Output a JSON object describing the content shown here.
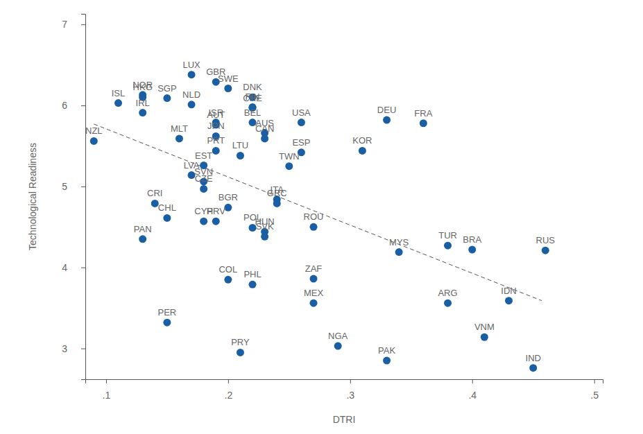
{
  "chart_data": {
    "type": "scatter",
    "x_label": "DTRI",
    "y_label": "Technological Readiness",
    "color": "#1a5fa3",
    "marker": "circle",
    "xlim": [
      0.083,
      0.507
    ],
    "ylim": [
      2.62,
      7.13
    ],
    "xticks": [
      {
        "value": 0.1,
        "label": ".1"
      },
      {
        "value": 0.2,
        "label": ".2"
      },
      {
        "value": 0.3,
        "label": ".3"
      },
      {
        "value": 0.4,
        "label": ".4"
      },
      {
        "value": 0.5,
        "label": ".5"
      }
    ],
    "yticks": [
      3,
      4,
      5,
      6,
      7
    ],
    "grid": false,
    "labels": [
      "NZL",
      "ISL",
      "NOR",
      "HKG",
      "IRL",
      "SGP",
      "LUX",
      "NLD",
      "GBR",
      "SWE",
      "DNK",
      "FIN",
      "CHE",
      "ISR",
      "AUT",
      "JPN",
      "PRT",
      "BEL",
      "AUS",
      "CAN",
      "USA",
      "DEU",
      "FRA",
      "KOR",
      "ESP",
      "TWN",
      "LTU",
      "MLT",
      "EST",
      "LVA",
      "SVN",
      "CZE",
      "CRI",
      "CHL",
      "BGR",
      "ITA",
      "GRC",
      "CYP",
      "HRV",
      "POL",
      "HUN",
      "SVK",
      "ROU",
      "PAN",
      "MYS",
      "TUR",
      "BRA",
      "RUS",
      "COL",
      "PHL",
      "ZAF",
      "MEX",
      "ARG",
      "IDN",
      "PER",
      "PRY",
      "NGA",
      "PAK",
      "VNM",
      "IND"
    ],
    "x": [
      0.09,
      0.11,
      0.13,
      0.13,
      0.13,
      0.15,
      0.17,
      0.17,
      0.19,
      0.2,
      0.22,
      0.22,
      0.22,
      0.19,
      0.19,
      0.19,
      0.19,
      0.22,
      0.23,
      0.23,
      0.26,
      0.33,
      0.36,
      0.31,
      0.26,
      0.25,
      0.21,
      0.16,
      0.18,
      0.17,
      0.18,
      0.18,
      0.14,
      0.15,
      0.2,
      0.24,
      0.24,
      0.18,
      0.19,
      0.22,
      0.23,
      0.23,
      0.27,
      0.13,
      0.34,
      0.38,
      0.4,
      0.46,
      0.2,
      0.22,
      0.27,
      0.27,
      0.38,
      0.43,
      0.15,
      0.21,
      0.29,
      0.33,
      0.41,
      0.45
    ],
    "values": [
      5.56,
      6.03,
      6.13,
      6.1,
      5.91,
      6.09,
      6.38,
      6.01,
      6.29,
      6.21,
      6.1,
      5.98,
      5.97,
      5.79,
      5.76,
      5.62,
      5.44,
      5.79,
      5.66,
      5.59,
      5.79,
      5.82,
      5.78,
      5.44,
      5.42,
      5.25,
      5.38,
      5.59,
      5.26,
      5.14,
      5.06,
      4.97,
      4.79,
      4.61,
      4.74,
      4.84,
      4.79,
      4.57,
      4.57,
      4.49,
      4.44,
      4.38,
      4.5,
      4.35,
      4.19,
      4.27,
      4.22,
      4.21,
      3.85,
      3.79,
      3.86,
      3.56,
      3.56,
      3.59,
      3.32,
      2.95,
      3.03,
      2.85,
      3.14,
      2.76
    ],
    "trend_line": {
      "x": [
        0.09,
        0.457
      ],
      "values": [
        5.77,
        3.59
      ],
      "line_style": "dashed",
      "color": "#555555"
    }
  }
}
